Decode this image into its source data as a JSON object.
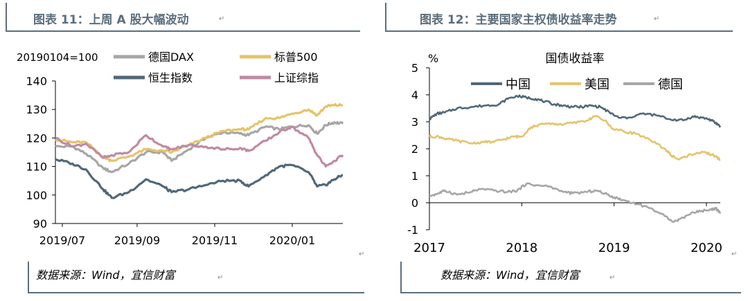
{
  "left": {
    "title": "图表 11：上周 A 股大幅波动",
    "source": "数据来源：Wind，宜信财富",
    "chart_data": {
      "type": "line",
      "title": "",
      "base_label": "20190104=100",
      "x_ticks": [
        "2019/07",
        "2019/09",
        "2019/11",
        "2020/01"
      ],
      "ylim": [
        90,
        140
      ],
      "y_ticks": [
        90,
        100,
        110,
        120,
        130,
        140
      ],
      "x_domain": [
        "2019-07-01",
        "2020-02-21"
      ],
      "grid": false,
      "legend_position": "top",
      "series": [
        {
          "name": "德国DAX",
          "color": "#a6a6a6",
          "points": [
            [
              "2019-07-01",
              117
            ],
            [
              "2019-07-15",
              117
            ],
            [
              "2019-07-26",
              114.5
            ],
            [
              "2019-08-09",
              109.5
            ],
            [
              "2019-08-16",
              108
            ],
            [
              "2019-08-30",
              111
            ],
            [
              "2019-09-13",
              115
            ],
            [
              "2019-09-27",
              115
            ],
            [
              "2019-10-04",
              112
            ],
            [
              "2019-10-18",
              116
            ],
            [
              "2019-11-01",
              120
            ],
            [
              "2019-11-15",
              122
            ],
            [
              "2019-11-29",
              121.5
            ],
            [
              "2019-12-06",
              121
            ],
            [
              "2019-12-20",
              124
            ],
            [
              "2019-12-31",
              123
            ],
            [
              "2020-01-10",
              124
            ],
            [
              "2020-01-24",
              124.5
            ],
            [
              "2020-01-31",
              121.5
            ],
            [
              "2020-02-07",
              124.5
            ],
            [
              "2020-02-14",
              125.5
            ],
            [
              "2020-02-21",
              125
            ]
          ]
        },
        {
          "name": "标普500",
          "color": "#e6c36a",
          "points": [
            [
              "2019-07-01",
              119.5
            ],
            [
              "2019-07-15",
              118.5
            ],
            [
              "2019-07-26",
              118.5
            ],
            [
              "2019-08-09",
              113.5
            ],
            [
              "2019-08-16",
              112
            ],
            [
              "2019-08-30",
              113.5
            ],
            [
              "2019-09-13",
              116
            ],
            [
              "2019-09-27",
              115.5
            ],
            [
              "2019-10-04",
              115
            ],
            [
              "2019-10-18",
              117.5
            ],
            [
              "2019-11-01",
              120
            ],
            [
              "2019-11-15",
              122.5
            ],
            [
              "2019-11-29",
              123
            ],
            [
              "2019-12-06",
              123
            ],
            [
              "2019-12-20",
              127
            ],
            [
              "2019-12-31",
              127
            ],
            [
              "2020-01-10",
              128.5
            ],
            [
              "2020-01-24",
              130
            ],
            [
              "2020-01-31",
              128
            ],
            [
              "2020-02-07",
              131
            ],
            [
              "2020-02-14",
              131.5
            ],
            [
              "2020-02-21",
              131.5
            ]
          ]
        },
        {
          "name": "恒生指数",
          "color": "#516878",
          "points": [
            [
              "2019-07-01",
              112.5
            ],
            [
              "2019-07-15",
              111
            ],
            [
              "2019-07-26",
              109
            ],
            [
              "2019-08-09",
              102
            ],
            [
              "2019-08-16",
              99
            ],
            [
              "2019-08-30",
              101
            ],
            [
              "2019-09-13",
              105.5
            ],
            [
              "2019-09-27",
              103
            ],
            [
              "2019-10-04",
              101
            ],
            [
              "2019-10-18",
              102
            ],
            [
              "2019-11-01",
              103.5
            ],
            [
              "2019-11-15",
              105
            ],
            [
              "2019-11-29",
              105
            ],
            [
              "2019-12-06",
              103
            ],
            [
              "2019-12-20",
              107
            ],
            [
              "2019-12-31",
              110
            ],
            [
              "2020-01-10",
              110.5
            ],
            [
              "2020-01-24",
              108
            ],
            [
              "2020-01-31",
              103
            ],
            [
              "2020-02-07",
              103.5
            ],
            [
              "2020-02-14",
              105.5
            ],
            [
              "2020-02-21",
              107
            ]
          ]
        },
        {
          "name": "上证综指",
          "color": "#c08aa3",
          "points": [
            [
              "2019-07-01",
              120
            ],
            [
              "2019-07-15",
              117
            ],
            [
              "2019-07-26",
              118
            ],
            [
              "2019-08-09",
              113
            ],
            [
              "2019-08-16",
              114
            ],
            [
              "2019-08-30",
              115
            ],
            [
              "2019-09-13",
              121
            ],
            [
              "2019-09-27",
              117
            ],
            [
              "2019-10-04",
              116
            ],
            [
              "2019-10-18",
              117.5
            ],
            [
              "2019-11-01",
              117
            ],
            [
              "2019-11-15",
              116
            ],
            [
              "2019-11-29",
              116.5
            ],
            [
              "2019-12-06",
              115.5
            ],
            [
              "2019-12-20",
              119
            ],
            [
              "2019-12-31",
              122
            ],
            [
              "2020-01-10",
              124
            ],
            [
              "2020-01-24",
              120
            ],
            [
              "2020-01-31",
              114
            ],
            [
              "2020-02-07",
              110
            ],
            [
              "2020-02-14",
              112
            ],
            [
              "2020-02-21",
              114
            ]
          ]
        }
      ]
    }
  },
  "right": {
    "title": "图表 12：主要国家主权债收益率走势",
    "source": "数据来源：Wind，宜信财富",
    "chart_data": {
      "type": "line",
      "title": "国债收益率",
      "ylabel": "%",
      "x_ticks": [
        "2017",
        "2018",
        "2019",
        "2020"
      ],
      "ylim": [
        -1,
        5
      ],
      "y_ticks": [
        -1,
        0,
        1,
        2,
        3,
        4,
        5
      ],
      "x_domain": [
        2017.0,
        2020.15
      ],
      "grid": false,
      "legend_position": "top",
      "series": [
        {
          "name": "中国",
          "color": "#516878",
          "points": [
            [
              2017.0,
              3.1
            ],
            [
              2017.08,
              3.3
            ],
            [
              2017.17,
              3.35
            ],
            [
              2017.3,
              3.5
            ],
            [
              2017.45,
              3.55
            ],
            [
              2017.6,
              3.6
            ],
            [
              2017.75,
              3.65
            ],
            [
              2017.85,
              3.85
            ],
            [
              2017.95,
              3.95
            ],
            [
              2018.05,
              3.9
            ],
            [
              2018.15,
              3.85
            ],
            [
              2018.25,
              3.75
            ],
            [
              2018.35,
              3.65
            ],
            [
              2018.45,
              3.6
            ],
            [
              2018.55,
              3.55
            ],
            [
              2018.65,
              3.55
            ],
            [
              2018.75,
              3.6
            ],
            [
              2018.85,
              3.55
            ],
            [
              2018.95,
              3.35
            ],
            [
              2019.05,
              3.15
            ],
            [
              2019.15,
              3.15
            ],
            [
              2019.3,
              3.3
            ],
            [
              2019.45,
              3.25
            ],
            [
              2019.6,
              3.1
            ],
            [
              2019.75,
              3.05
            ],
            [
              2019.85,
              3.2
            ],
            [
              2019.95,
              3.15
            ],
            [
              2020.03,
              3.1
            ],
            [
              2020.1,
              2.95
            ],
            [
              2020.15,
              2.85
            ]
          ]
        },
        {
          "name": "美国",
          "color": "#e6c36a",
          "points": [
            [
              2017.0,
              2.45
            ],
            [
              2017.1,
              2.45
            ],
            [
              2017.2,
              2.35
            ],
            [
              2017.3,
              2.3
            ],
            [
              2017.45,
              2.2
            ],
            [
              2017.6,
              2.25
            ],
            [
              2017.7,
              2.25
            ],
            [
              2017.8,
              2.35
            ],
            [
              2017.92,
              2.45
            ],
            [
              2018.0,
              2.45
            ],
            [
              2018.08,
              2.75
            ],
            [
              2018.15,
              2.85
            ],
            [
              2018.3,
              2.95
            ],
            [
              2018.4,
              2.9
            ],
            [
              2018.55,
              2.95
            ],
            [
              2018.7,
              3.05
            ],
            [
              2018.8,
              3.2
            ],
            [
              2018.9,
              3.05
            ],
            [
              2018.98,
              2.75
            ],
            [
              2019.1,
              2.65
            ],
            [
              2019.25,
              2.55
            ],
            [
              2019.4,
              2.3
            ],
            [
              2019.55,
              2.0
            ],
            [
              2019.62,
              1.75
            ],
            [
              2019.7,
              1.6
            ],
            [
              2019.8,
              1.75
            ],
            [
              2019.9,
              1.85
            ],
            [
              2020.0,
              1.85
            ],
            [
              2020.08,
              1.75
            ],
            [
              2020.15,
              1.6
            ]
          ]
        },
        {
          "name": "德国",
          "color": "#a6a6a6",
          "points": [
            [
              2017.0,
              0.25
            ],
            [
              2017.1,
              0.35
            ],
            [
              2017.17,
              0.45
            ],
            [
              2017.3,
              0.3
            ],
            [
              2017.45,
              0.4
            ],
            [
              2017.55,
              0.5
            ],
            [
              2017.7,
              0.45
            ],
            [
              2017.85,
              0.4
            ],
            [
              2017.95,
              0.45
            ],
            [
              2018.05,
              0.7
            ],
            [
              2018.15,
              0.65
            ],
            [
              2018.3,
              0.6
            ],
            [
              2018.45,
              0.4
            ],
            [
              2018.55,
              0.35
            ],
            [
              2018.7,
              0.4
            ],
            [
              2018.8,
              0.45
            ],
            [
              2018.9,
              0.35
            ],
            [
              2019.0,
              0.2
            ],
            [
              2019.1,
              0.1
            ],
            [
              2019.25,
              -0.05
            ],
            [
              2019.4,
              -0.2
            ],
            [
              2019.55,
              -0.5
            ],
            [
              2019.65,
              -0.7
            ],
            [
              2019.75,
              -0.55
            ],
            [
              2019.85,
              -0.35
            ],
            [
              2019.95,
              -0.3
            ],
            [
              2020.05,
              -0.25
            ],
            [
              2020.1,
              -0.2
            ],
            [
              2020.15,
              -0.4
            ]
          ]
        }
      ]
    }
  }
}
